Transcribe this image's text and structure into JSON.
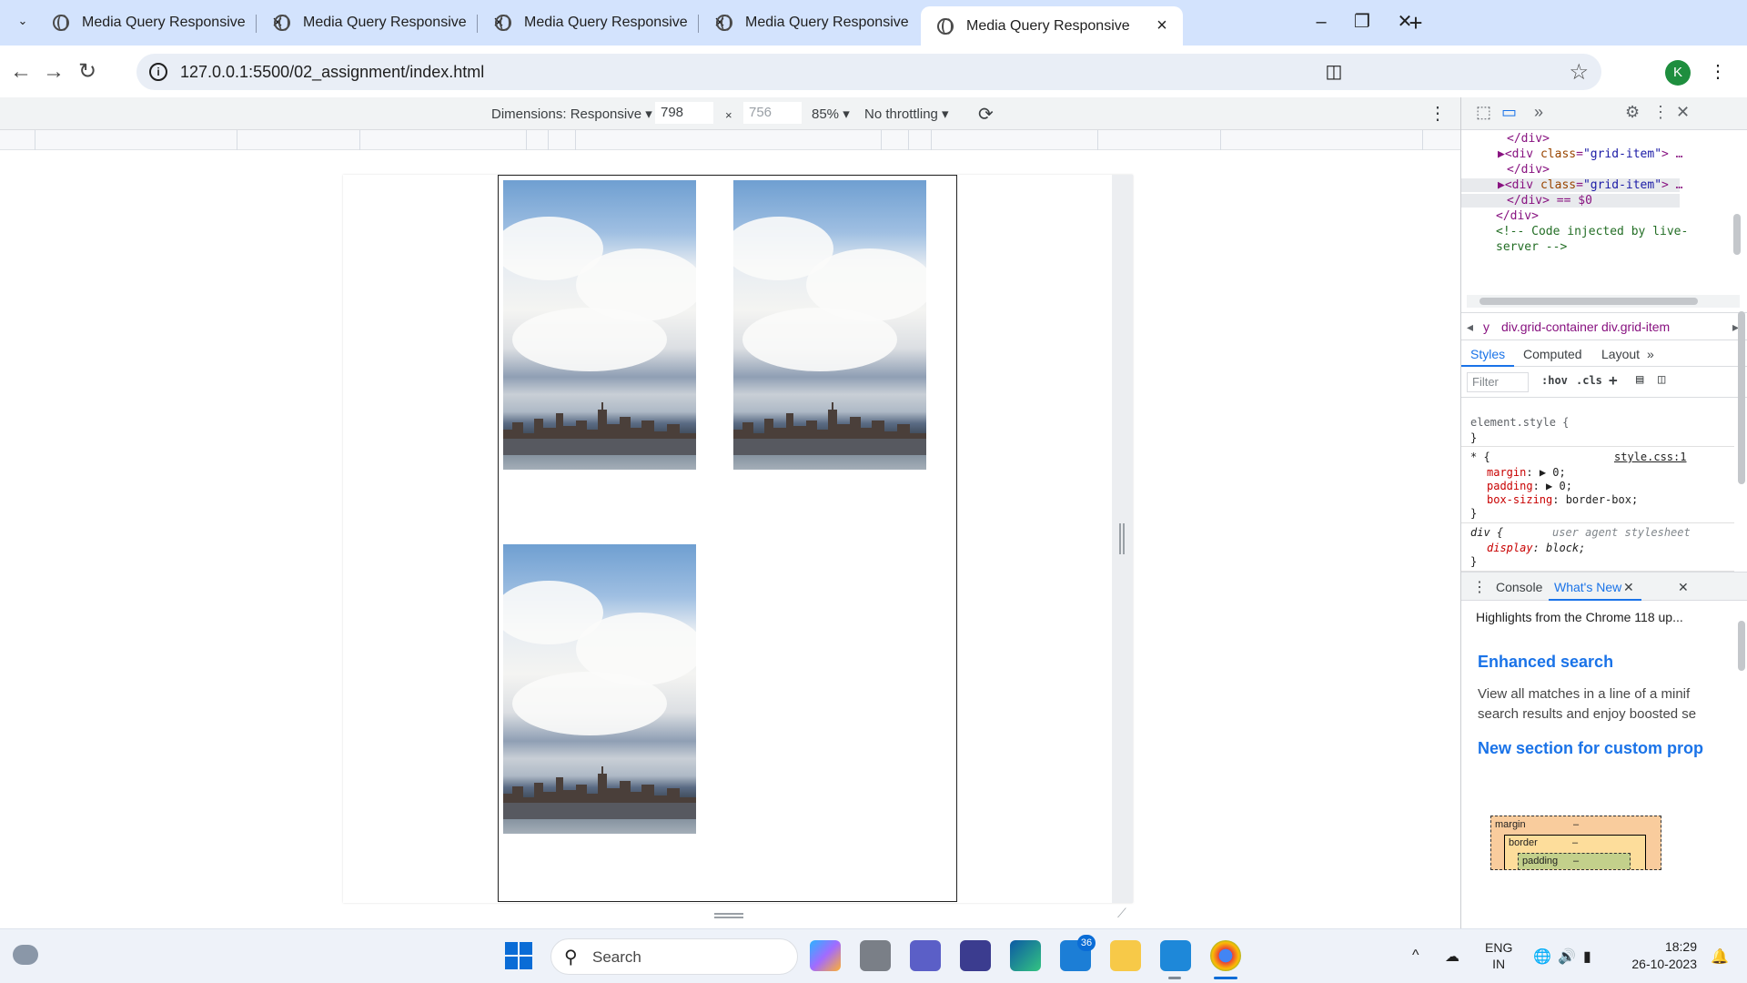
{
  "browser": {
    "tabs": [
      {
        "title": "Media Query Responsive"
      },
      {
        "title": "Media Query Responsive"
      },
      {
        "title": "Media Query Responsive"
      },
      {
        "title": "Media Query Responsive"
      },
      {
        "title": "Media Query Responsive",
        "active": true
      }
    ],
    "new_tab": "+",
    "url": "127.0.0.1:5500/02_assignment/index.html",
    "profile_initial": "K"
  },
  "device_toolbar": {
    "dimensions_label": "Dimensions: Responsive",
    "width": "798",
    "height": "756",
    "times": "×",
    "zoom": "85%",
    "throttling": "No throttling"
  },
  "devtools": {
    "elements": {
      "lines": [
        {
          "text": "</div>",
          "kind": "tag"
        },
        {
          "text_tag": "<div ",
          "attr": "class",
          "val": "\"grid-item\"",
          "end": ">",
          "kind": "open"
        },
        {
          "text": "</div>",
          "kind": "tag"
        },
        {
          "text_tag": "<div ",
          "attr": "class",
          "val": "\"grid-item\"",
          "end": ">",
          "kind": "open",
          "selected": true
        },
        {
          "text": "</div> == $0",
          "kind": "tag",
          "selected": true
        },
        {
          "text": "</div>",
          "kind": "tag"
        },
        {
          "text": "<!-- Code injected by live-",
          "kind": "comment"
        },
        {
          "text": "server -->",
          "kind": "comment"
        }
      ]
    },
    "breadcrumbs": [
      "y",
      "div.grid-container",
      "div.grid-item"
    ],
    "panel_tabs": [
      "Styles",
      "Computed",
      "Layout"
    ],
    "filter_placeholder": "Filter",
    "filter_buttons": [
      ":hov",
      ".cls"
    ],
    "styles": {
      "element_style": "element.style {",
      "close": "}",
      "rule1_selector": "* {",
      "rule1_source": "style.css:1",
      "rule1_props": [
        {
          "name": "margin",
          "value": "▶ 0;"
        },
        {
          "name": "padding",
          "value": "▶ 0;"
        },
        {
          "name": "box-sizing",
          "value": "border-box;"
        }
      ],
      "rule2_selector": "div {",
      "rule2_source": "user agent stylesheet",
      "rule2_props": [
        {
          "name": "display",
          "value": "block;"
        }
      ]
    },
    "box_model": {
      "margin": "margin",
      "border": "border",
      "padding": "padding",
      "dash": "–"
    },
    "drawer": {
      "tabs": [
        "Console",
        "What's New"
      ],
      "heading": "Highlights from the Chrome 118 up...",
      "section1_title": "Enhanced search",
      "section1_line1": "View all matches in a line of a minif",
      "section1_line2": "search results and enjoy boosted se",
      "section2_title": "New section for custom prop"
    }
  },
  "taskbar": {
    "search_label": "Search",
    "mail_badge": "36",
    "lang_line1": "ENG",
    "lang_line2": "IN",
    "time": "18:29",
    "date": "26-10-2023"
  }
}
